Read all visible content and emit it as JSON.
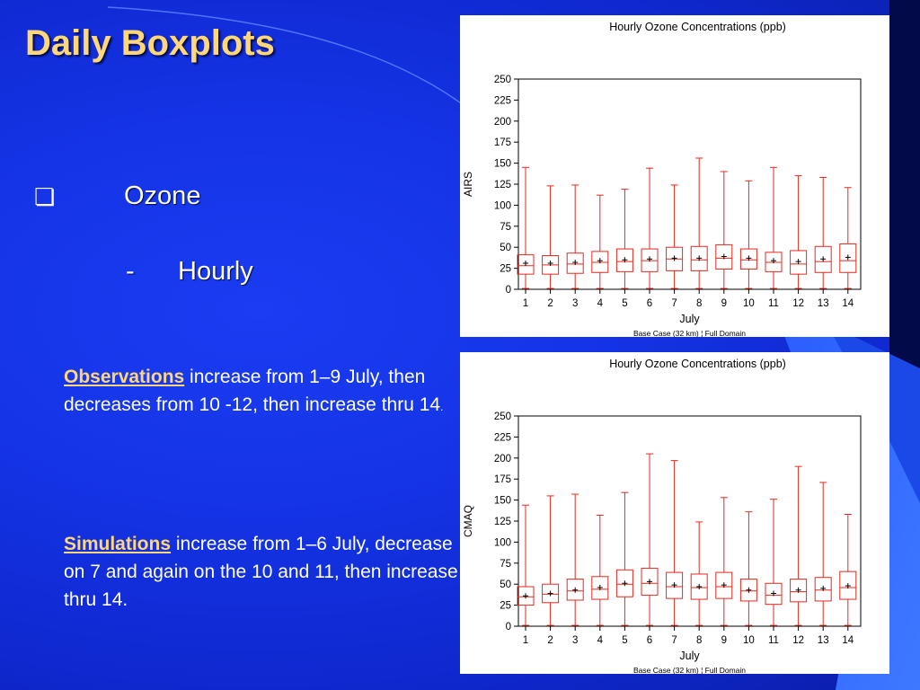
{
  "slide": {
    "title": "Daily Boxplots",
    "bullet": {
      "icon": "hollow-square-bullet-icon",
      "glyph": "❏",
      "text": "Ozone"
    },
    "sub_bullet": {
      "dash": "-",
      "text": "Hourly"
    },
    "notes": [
      {
        "keyword": "Observations",
        "text": " increase from 1–9 July, then decreases from 10 -12, then increase thru 14",
        "trailing": "."
      },
      {
        "keyword": "Simulations",
        "text": " increase from 1–6 July, decrease on 7  and again on the 10 and 11, then increase thru 14."
      }
    ]
  },
  "colors": {
    "background": "#1534e6",
    "title": "#ffd678",
    "box": "#e8281e",
    "text": "#ffffff"
  },
  "chart_data": [
    {
      "type": "boxplot",
      "title": "Hourly Ozone Concentrations (ppb)",
      "xlabel": "July",
      "ylabel": "AIRS",
      "footnote": "Base Case (32 km) ¦ Full Domain",
      "ylim": [
        0,
        250
      ],
      "yticks": [
        0,
        25,
        50,
        75,
        100,
        125,
        150,
        175,
        200,
        225,
        250
      ],
      "categories": [
        "1",
        "2",
        "3",
        "4",
        "5",
        "6",
        "7",
        "8",
        "9",
        "10",
        "11",
        "12",
        "13",
        "14"
      ],
      "boxes": [
        {
          "min": 1,
          "q1": 18,
          "median": 28,
          "q3": 41,
          "max": 145,
          "mean": 31
        },
        {
          "min": 1,
          "q1": 18,
          "median": 29,
          "q3": 40,
          "max": 123,
          "mean": 31
        },
        {
          "min": 1,
          "q1": 19,
          "median": 30,
          "q3": 43,
          "max": 124,
          "mean": 32
        },
        {
          "min": 1,
          "q1": 20,
          "median": 32,
          "q3": 45,
          "max": 112,
          "mean": 34
        },
        {
          "min": 1,
          "q1": 21,
          "median": 33,
          "q3": 48,
          "max": 119,
          "mean": 35
        },
        {
          "min": 1,
          "q1": 21,
          "median": 34,
          "q3": 48,
          "max": 144,
          "mean": 36
        },
        {
          "min": 1,
          "q1": 22,
          "median": 36,
          "q3": 50,
          "max": 124,
          "mean": 37
        },
        {
          "min": 1,
          "q1": 22,
          "median": 35,
          "q3": 51,
          "max": 156,
          "mean": 37
        },
        {
          "min": 1,
          "q1": 24,
          "median": 37,
          "q3": 53,
          "max": 140,
          "mean": 39
        },
        {
          "min": 1,
          "q1": 24,
          "median": 35,
          "q3": 48,
          "max": 129,
          "mean": 37
        },
        {
          "min": 1,
          "q1": 21,
          "median": 32,
          "q3": 44,
          "max": 145,
          "mean": 34
        },
        {
          "min": 1,
          "q1": 18,
          "median": 30,
          "q3": 46,
          "max": 135,
          "mean": 33
        },
        {
          "min": 1,
          "q1": 20,
          "median": 33,
          "q3": 51,
          "max": 133,
          "mean": 36
        },
        {
          "min": 1,
          "q1": 20,
          "median": 34,
          "q3": 54,
          "max": 121,
          "mean": 38
        }
      ]
    },
    {
      "type": "boxplot",
      "title": "Hourly Ozone Concentrations (ppb)",
      "xlabel": "July",
      "ylabel": "CMAQ",
      "footnote": "Base Case (32 km) ¦ Full Domain",
      "ylim": [
        0,
        250
      ],
      "yticks": [
        0,
        25,
        50,
        75,
        100,
        125,
        150,
        175,
        200,
        225,
        250
      ],
      "categories": [
        "1",
        "2",
        "3",
        "4",
        "5",
        "6",
        "7",
        "8",
        "9",
        "10",
        "11",
        "12",
        "13",
        "14"
      ],
      "boxes": [
        {
          "min": 1,
          "q1": 25,
          "median": 35,
          "q3": 47,
          "max": 144,
          "mean": 36
        },
        {
          "min": 1,
          "q1": 28,
          "median": 38,
          "q3": 50,
          "max": 155,
          "mean": 39
        },
        {
          "min": 1,
          "q1": 31,
          "median": 42,
          "q3": 56,
          "max": 157,
          "mean": 43
        },
        {
          "min": 1,
          "q1": 32,
          "median": 44,
          "q3": 59,
          "max": 132,
          "mean": 46
        },
        {
          "min": 1,
          "q1": 35,
          "median": 50,
          "q3": 67,
          "max": 159,
          "mean": 51
        },
        {
          "min": 1,
          "q1": 37,
          "median": 51,
          "q3": 69,
          "max": 205,
          "mean": 53
        },
        {
          "min": 1,
          "q1": 33,
          "median": 47,
          "q3": 64,
          "max": 197,
          "mean": 49
        },
        {
          "min": 1,
          "q1": 32,
          "median": 46,
          "q3": 62,
          "max": 124,
          "mean": 47
        },
        {
          "min": 1,
          "q1": 33,
          "median": 47,
          "q3": 64,
          "max": 153,
          "mean": 49
        },
        {
          "min": 1,
          "q1": 30,
          "median": 42,
          "q3": 56,
          "max": 136,
          "mean": 43
        },
        {
          "min": 1,
          "q1": 26,
          "median": 37,
          "q3": 51,
          "max": 151,
          "mean": 39
        },
        {
          "min": 1,
          "q1": 29,
          "median": 41,
          "q3": 56,
          "max": 190,
          "mean": 43
        },
        {
          "min": 1,
          "q1": 30,
          "median": 43,
          "q3": 58,
          "max": 171,
          "mean": 45
        },
        {
          "min": 1,
          "q1": 32,
          "median": 46,
          "q3": 65,
          "max": 133,
          "mean": 48
        }
      ]
    }
  ]
}
